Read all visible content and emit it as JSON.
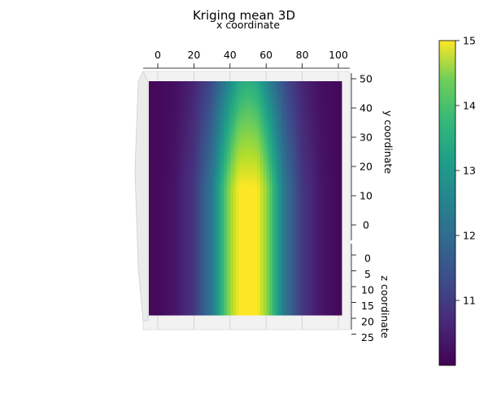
{
  "chart_data": {
    "type": "heatmap",
    "title": "Kriging mean 3D",
    "xlabel": "x coordinate",
    "ylabel": "y coordinate",
    "zlabel": "z coordinate",
    "x_ticks": [
      "0",
      "20",
      "40",
      "60",
      "80",
      "100"
    ],
    "y_ticks": [
      "0",
      "10",
      "20",
      "30",
      "40",
      "50"
    ],
    "z_ticks": [
      "0",
      "5",
      "10",
      "15",
      "20",
      "25"
    ],
    "xlim": [
      -8,
      105
    ],
    "ylim": [
      0,
      50
    ],
    "colorbar": {
      "colormap": "viridis",
      "ticks": [
        "11",
        "12",
        "13",
        "14",
        "15"
      ],
      "range": [
        10.0,
        15.0
      ]
    },
    "field": {
      "description_of_values": "mean peaks near x=50 across full y range, decreasing toward x edges",
      "peak_x": 50,
      "peak_value": 15.0,
      "edge_value": 10.1,
      "x_samples": [
        0,
        10,
        20,
        30,
        40,
        45,
        50,
        55,
        60,
        70,
        80,
        90,
        100
      ],
      "value_at_y_low": [
        10.1,
        10.3,
        10.8,
        12.0,
        14.2,
        15.0,
        15.0,
        15.0,
        14.2,
        12.0,
        10.8,
        10.3,
        10.1
      ],
      "value_at_y_high": [
        10.1,
        10.2,
        10.5,
        11.2,
        12.4,
        13.0,
        13.2,
        13.0,
        12.4,
        11.2,
        10.5,
        10.2,
        10.1
      ]
    }
  }
}
